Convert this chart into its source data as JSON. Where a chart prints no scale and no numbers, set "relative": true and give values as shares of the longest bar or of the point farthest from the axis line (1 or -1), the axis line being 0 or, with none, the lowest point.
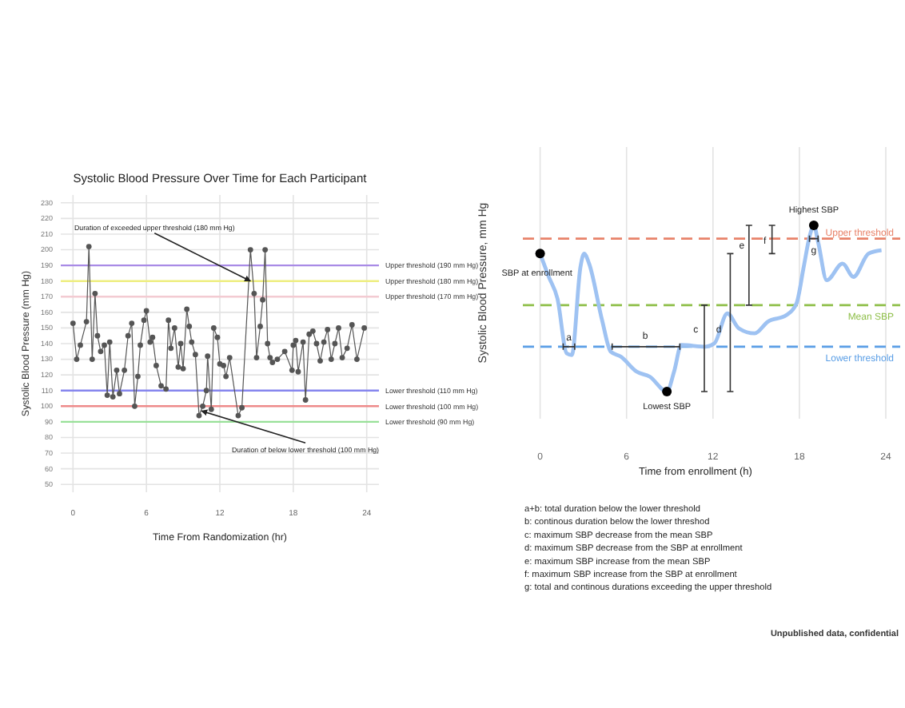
{
  "chart_data": [
    {
      "type": "line",
      "title": "Systolic Blood Pressure Over Time for Each Participant",
      "xlabel": "Time From Randomization (hr)",
      "ylabel": "Systolic Blood Pressure (mm Hg)",
      "x": [
        0,
        0.3,
        0.6,
        1.1,
        1.3,
        1.57,
        1.8,
        2.0,
        2.26,
        2.56,
        2.8,
        3.0,
        3.26,
        3.57,
        3.8,
        4.2,
        4.5,
        4.8,
        5.04,
        5.3,
        5.5,
        5.8,
        6.0,
        6.3,
        6.5,
        6.8,
        7.2,
        7.6,
        7.8,
        8.0,
        8.3,
        8.6,
        8.8,
        9.0,
        9.3,
        9.5,
        9.7,
        10.0,
        10.3,
        10.6,
        10.9,
        11.0,
        11.3,
        11.5,
        11.8,
        12.0,
        12.3,
        12.5,
        12.8,
        13.5,
        13.8,
        14.5,
        14.8,
        15.0,
        15.3,
        15.5,
        15.7,
        15.9,
        16.1,
        16.3,
        16.7,
        17.3,
        17.9,
        18.0,
        18.2,
        18.4,
        18.8,
        19.0,
        19.3,
        19.6,
        19.9,
        20.2,
        20.5,
        20.8,
        21.1,
        21.4,
        21.7,
        22.0,
        22.4,
        22.8,
        23.2,
        23.8
      ],
      "values": [
        153,
        130,
        139,
        154,
        202,
        130,
        172,
        145,
        135,
        139,
        107,
        141,
        106,
        123,
        108,
        123,
        145,
        153,
        100,
        119,
        139,
        155,
        161,
        141,
        144,
        126,
        113,
        111,
        155,
        137,
        150,
        125,
        140,
        124,
        162,
        151,
        141,
        133,
        94,
        100,
        110,
        132,
        98,
        150,
        144,
        127,
        126,
        119,
        131,
        94,
        99,
        200,
        172,
        131,
        151,
        168,
        200,
        140,
        131,
        128,
        130,
        135,
        123,
        139,
        142,
        122,
        141,
        104,
        146,
        148,
        140,
        129,
        141,
        149,
        130,
        140,
        150,
        131,
        137,
        152,
        130,
        150
      ],
      "color": "#555555",
      "marker": "circle",
      "xlim": [
        -1,
        25
      ],
      "xticks": [
        0,
        6,
        12,
        18,
        24
      ],
      "ylim": [
        45,
        235
      ],
      "yticks": [
        50,
        60,
        70,
        80,
        90,
        100,
        110,
        120,
        130,
        140,
        150,
        160,
        170,
        180,
        190,
        200,
        210,
        220,
        230
      ],
      "grid": true,
      "ref_lines": [
        {
          "axis": "y",
          "value": 190,
          "label": "Upper threshold (190 mm Hg)",
          "color": "#a98be6"
        },
        {
          "axis": "y",
          "value": 180,
          "label": "Upper threshold (180 mm Hg)",
          "color": "#eeee80"
        },
        {
          "axis": "y",
          "value": 170,
          "label": "Upper threshold (170 mm Hg)",
          "color": "#f3cbd2"
        },
        {
          "axis": "y",
          "value": 110,
          "label": "Lower threshold (110 mm Hg)",
          "color": "#8585ee"
        },
        {
          "axis": "y",
          "value": 100,
          "label": "Lower threshold (100 mm Hg)",
          "color": "#ee8a8a"
        },
        {
          "axis": "y",
          "value": 90,
          "label": "Lower threshold (90 mm Hg)",
          "color": "#99e099"
        }
      ],
      "annotations": [
        {
          "text": "Duration of exceeded upper threshold (180 mm Hg)",
          "x": 14.5,
          "y": 180
        },
        {
          "text": "Duration of below lower threshold (100 mm Hg)",
          "x": 10.5,
          "y": 97
        }
      ]
    },
    {
      "type": "line",
      "relative": true,
      "xlabel": "Time from enrollment (h)",
      "ylabel": "Systolic Blood Pressure, mm Hg",
      "xlim": [
        -1.2,
        25
      ],
      "xticks": [
        0,
        6,
        12,
        18,
        24
      ],
      "grid": "x",
      "line_style": "solid",
      "series": [
        {
          "color": "#9ec2f2",
          "x": [
            0,
            0.6,
            1.2,
            1.85,
            2.2,
            2.8,
            3.05,
            3.4,
            4.3,
            4.9,
            5.6,
            6.7,
            7.6,
            8.8,
            9.3,
            9.8,
            11.5,
            12.1,
            13.0,
            13.8,
            14.9,
            15.8,
            17.1,
            17.8,
            18.3,
            18.7,
            19.0,
            19.3,
            19.9,
            21.0,
            21.75,
            22.8,
            23.7
          ],
          "values": [
            0.83,
            0.69,
            0.56,
            0.23,
            0.22,
            0.75,
            0.83,
            0.77,
            0.43,
            0.24,
            0.21,
            0.12,
            0.09,
            0,
            0.12,
            0.28,
            0.27,
            0.29,
            0.47,
            0.38,
            0.35,
            0.42,
            0.46,
            0.53,
            0.75,
            0.93,
            1,
            0.9,
            0.67,
            0.77,
            0.69,
            0.83,
            0.85
          ]
        },
        {
          "type": "scatter",
          "color": "#000000",
          "x": [
            0,
            8.8,
            19
          ],
          "values": [
            0.83,
            0,
            1
          ]
        }
      ],
      "ref_lines": [
        {
          "axis": "y",
          "value": 0.92,
          "label": "Upper threshold",
          "color": "#e8836a",
          "line_style": "dashed"
        },
        {
          "axis": "y",
          "value": 0.52,
          "label": "Mean SBP",
          "color": "#8fbf4a",
          "line_style": "dashed"
        },
        {
          "axis": "y",
          "value": 0.27,
          "label": "Lower threshold",
          "color": "#5a9ee6",
          "line_style": "dashed"
        }
      ],
      "annotations": [
        {
          "text": "SBP at enrollment",
          "x": 0,
          "y": 0.83
        },
        {
          "text": "Lowest SBP",
          "x": 8.8,
          "y": 0
        },
        {
          "text": "Highest SBP",
          "x": 19,
          "y": 1
        },
        {
          "text": "a",
          "x": 2.0,
          "y": 0.27
        },
        {
          "text": "b",
          "x": 7.3,
          "y": 0.27
        },
        {
          "text": "c",
          "x": 10.8,
          "y": 0.27
        },
        {
          "text": "d",
          "x": 12.4,
          "y": 0.27
        },
        {
          "text": "e",
          "x": 14.0,
          "y": 0.92
        },
        {
          "text": "f",
          "x": 15.6,
          "y": 0.92
        },
        {
          "text": "g",
          "x": 19.0,
          "y": 0.92
        },
        "a+b: total duration below the lower threshold",
        "b: continous duration below the lower threshod",
        "c: maximum SBP decrease from the mean SBP",
        "d: maximum SBP decrease from the SBP at enrollment",
        "e: maximum SBP increase from the mean SBP",
        "f: maximum SBP increase from the SBP at enrollment",
        "g: total and continous durations exceeding the upper threshold",
        "Unpublished data, confidential"
      ]
    }
  ]
}
